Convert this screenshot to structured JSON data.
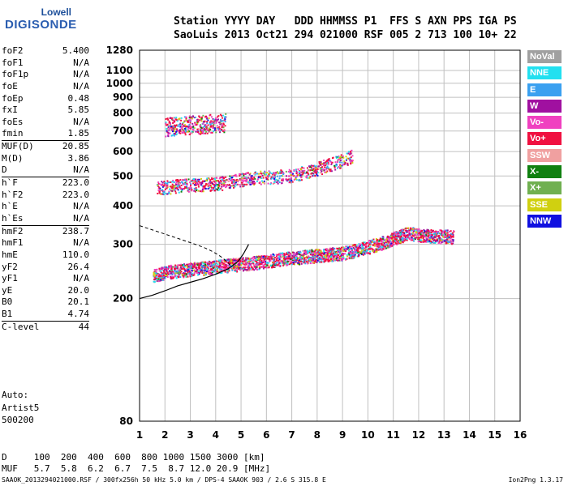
{
  "logo": {
    "line1": "Lowell",
    "line2": "DIGISONDE"
  },
  "station": {
    "header": "Station YYYY DAY   DDD HHMMSS P1  FFS S AXN PPS IGA PS",
    "values": "SaoLuis 2013 Oct21 294 021000 RSF 005 2 713 100 10+ 22"
  },
  "params": [
    {
      "label": "foF2",
      "value": "5.400"
    },
    {
      "label": "foF1",
      "value": "N/A"
    },
    {
      "label": "foF1p",
      "value": "N/A"
    },
    {
      "label": "foE",
      "value": "N/A"
    },
    {
      "label": "foEp",
      "value": "0.48"
    },
    {
      "label": "fxI",
      "value": "5.85"
    },
    {
      "label": "foEs",
      "value": "N/A"
    },
    {
      "label": "fmin",
      "value": "1.85"
    },
    {
      "label": "MUF(D)",
      "value": "20.85",
      "sep": true
    },
    {
      "label": "M(D)",
      "value": "3.86"
    },
    {
      "label": "D",
      "value": "N/A"
    },
    {
      "label": "h`F",
      "value": "223.0",
      "sep": true
    },
    {
      "label": "h`F2",
      "value": "223.0"
    },
    {
      "label": "h`E",
      "value": "N/A"
    },
    {
      "label": "h`Es",
      "value": "N/A"
    },
    {
      "label": "hmF2",
      "value": "238.7",
      "sep": true
    },
    {
      "label": "hmF1",
      "value": "N/A"
    },
    {
      "label": "hmE",
      "value": "110.0"
    },
    {
      "label": "yF2",
      "value": "26.4"
    },
    {
      "label": "yF1",
      "value": "N/A"
    },
    {
      "label": "yE",
      "value": "20.0"
    },
    {
      "label": "B0",
      "value": "20.1"
    },
    {
      "label": "B1",
      "value": "4.74"
    },
    {
      "label": "C-level",
      "value": "44",
      "sep": true
    }
  ],
  "auto": {
    "line1": "Auto:",
    "line2": "Artist5",
    "line3": "500200"
  },
  "muf_table": {
    "d_row": "D     100  200  400  600  800 1000 1500 3000 [km]",
    "muf_row": "MUF   5.7  5.8  6.2  6.7  7.5  8.7 12.0 20.9 [MHz]"
  },
  "footer": {
    "left": "SAAOK_2013294021000.RSF / 300fx256h 50 kHz 5.0 km / DPS-4 SAAOK 903 / 2.6 S 315.8 E",
    "right": "Ion2Png 1.3.17"
  },
  "legend": [
    {
      "label": "NoVal",
      "color": "#a0a0a0"
    },
    {
      "label": "NNE",
      "color": "#22e0f0"
    },
    {
      "label": "E",
      "color": "#3aa0f0"
    },
    {
      "label": "W",
      "color": "#a010a0"
    },
    {
      "label": "Vo-",
      "color": "#f040c0"
    },
    {
      "label": "Vo+",
      "color": "#f01040"
    },
    {
      "label": "SSW",
      "color": "#f0a0a0"
    },
    {
      "label": "X-",
      "color": "#108010"
    },
    {
      "label": "X+",
      "color": "#70b050"
    },
    {
      "label": "SSE",
      "color": "#d0d010"
    },
    {
      "label": "NNW",
      "color": "#1010e0"
    }
  ],
  "chart_data": {
    "type": "scatter",
    "title": "",
    "xlabel": "",
    "ylabel": "",
    "xlim": [
      1,
      16
    ],
    "ylim": [
      80,
      1280
    ],
    "yscale": "log",
    "grid": true,
    "x_ticks": [
      1,
      2,
      3,
      4,
      5,
      6,
      7,
      8,
      9,
      10,
      11,
      12,
      13,
      14,
      15,
      16
    ],
    "y_ticks": [
      80,
      200,
      300,
      400,
      500,
      600,
      700,
      800,
      900,
      1000,
      1100,
      1280
    ],
    "series": [
      {
        "name": "virtual height trace",
        "points": [
          [
            1.55,
            236
          ],
          [
            1.8,
            240
          ],
          [
            2.2,
            244
          ],
          [
            2.6,
            246
          ],
          [
            3.0,
            248
          ],
          [
            3.4,
            250
          ],
          [
            3.8,
            252
          ],
          [
            4.2,
            254
          ],
          [
            4.6,
            256
          ],
          [
            5.0,
            258
          ],
          [
            5.4,
            260
          ],
          [
            5.8,
            262
          ],
          [
            6.2,
            265
          ],
          [
            6.6,
            268
          ],
          [
            7.0,
            270
          ],
          [
            7.4,
            272
          ],
          [
            7.8,
            274
          ],
          [
            8.2,
            276
          ],
          [
            8.6,
            278
          ],
          [
            9.0,
            280
          ],
          [
            9.4,
            284
          ],
          [
            9.8,
            290
          ],
          [
            10.2,
            296
          ],
          [
            10.6,
            303
          ],
          [
            11.0,
            312
          ],
          [
            11.3,
            318
          ],
          [
            11.6,
            325
          ],
          [
            12.2,
            320
          ],
          [
            12.6,
            318
          ],
          [
            13.0,
            318
          ],
          [
            13.4,
            316
          ]
        ]
      },
      {
        "name": "second hop",
        "points": [
          [
            1.7,
            455
          ],
          [
            2.2,
            460
          ],
          [
            2.6,
            465
          ],
          [
            3.0,
            465
          ],
          [
            3.4,
            468
          ],
          [
            3.8,
            470
          ],
          [
            4.2,
            472
          ],
          [
            4.6,
            478
          ],
          [
            5.0,
            485
          ],
          [
            5.4,
            492
          ],
          [
            6.2,
            495
          ],
          [
            6.6,
            498
          ],
          [
            7.0,
            500
          ],
          [
            7.8,
            520
          ],
          [
            8.4,
            540
          ],
          [
            9.0,
            560
          ],
          [
            9.4,
            580
          ]
        ]
      },
      {
        "name": "third hop",
        "points": [
          [
            2.0,
            720
          ],
          [
            2.4,
            725
          ],
          [
            2.8,
            730
          ],
          [
            3.2,
            732
          ],
          [
            3.6,
            736
          ],
          [
            4.0,
            740
          ],
          [
            4.4,
            745
          ]
        ]
      },
      {
        "name": "profile",
        "points": [
          [
            1.0,
            200
          ],
          [
            1.5,
            205
          ],
          [
            2.0,
            212
          ],
          [
            2.5,
            220
          ],
          [
            3.0,
            226
          ],
          [
            3.5,
            232
          ],
          [
            4.0,
            240
          ],
          [
            4.5,
            250
          ],
          [
            4.9,
            265
          ],
          [
            5.1,
            280
          ],
          [
            5.3,
            300
          ]
        ]
      }
    ]
  }
}
